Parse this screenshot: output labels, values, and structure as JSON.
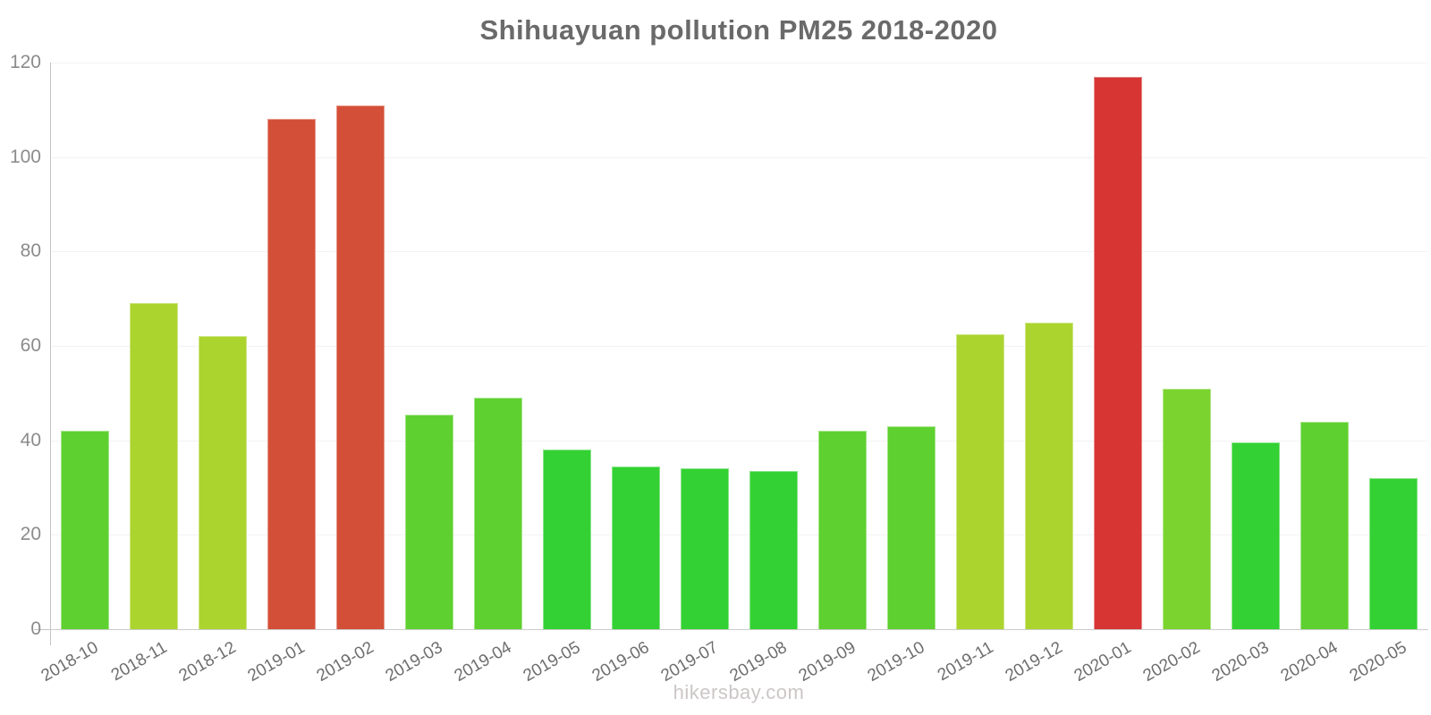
{
  "chart_data": {
    "type": "bar",
    "title": "Shihuayuan pollution PM25 2018-2020",
    "categories": [
      "2018-10",
      "2018-11",
      "2018-12",
      "2019-01",
      "2019-02",
      "2019-03",
      "2019-04",
      "2019-05",
      "2019-06",
      "2019-07",
      "2019-08",
      "2019-09",
      "2019-10",
      "2019-11",
      "2019-12",
      "2020-01",
      "2020-02",
      "2020-03",
      "2020-04",
      "2020-05"
    ],
    "values": [
      42,
      69,
      62,
      108,
      111,
      45.5,
      49,
      38,
      34.5,
      34,
      33.5,
      42,
      43,
      62.5,
      65,
      117,
      51,
      39.5,
      44,
      32
    ],
    "bar_colors": [
      "#5ed02f",
      "#abd42f",
      "#abd42f",
      "#d44f38",
      "#d44f38",
      "#5ed02f",
      "#5ed02f",
      "#33d133",
      "#33d133",
      "#33d133",
      "#33d133",
      "#5ed02f",
      "#5ed02f",
      "#abd42f",
      "#abd42f",
      "#d73434",
      "#7bd32f",
      "#33d133",
      "#5ed02f",
      "#33d133"
    ],
    "xlabel": "",
    "ylabel": "",
    "ylim": [
      0,
      120
    ],
    "yticks": [
      0,
      20,
      40,
      60,
      80,
      100,
      120
    ],
    "grid": "horizontal",
    "legend": "none"
  },
  "watermark": "hikersbay.com",
  "colors": {
    "title_text": "#6a6a6a",
    "y_tick_text": "#8b8b8b",
    "x_tick_text": "#6e6e6e",
    "gridline": "#f2f2f2",
    "axis_line": "#c4c4c4",
    "watermark_text": "#ccc6c6",
    "background": "#ffffff"
  }
}
